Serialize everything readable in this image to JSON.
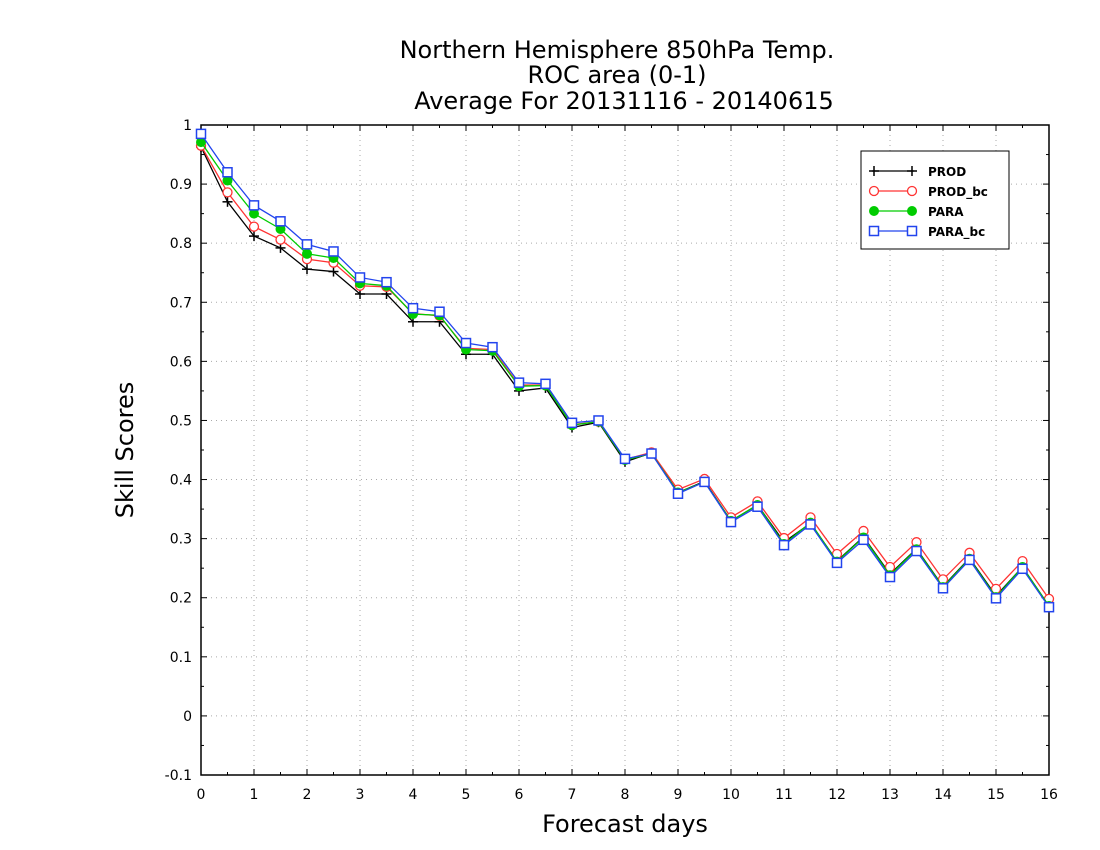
{
  "chart_data": {
    "type": "line",
    "title": [
      "Northern Hemisphere 850hPa Temp.",
      "ROC area (0-1)",
      "Average For 20131116 - 20140615"
    ],
    "xlabel": "Forecast days",
    "ylabel": "Skill Scores",
    "xlim": [
      0,
      16
    ],
    "ylim": [
      -0.1,
      1
    ],
    "x_ticks": [
      "0",
      "1",
      "2",
      "3",
      "4",
      "5",
      "6",
      "7",
      "8",
      "9",
      "10",
      "11",
      "12",
      "13",
      "14",
      "15",
      "16"
    ],
    "y_ticks": [
      "1",
      "0.9",
      "0.8",
      "0.7",
      "0.6",
      "0.5",
      "0.4",
      "0.3",
      "0.2",
      "0.1",
      "0",
      "-0.1"
    ],
    "grid": true,
    "legend_position": "top-right",
    "x": [
      0,
      0.5,
      1,
      1.5,
      2,
      2.5,
      3,
      3.5,
      4,
      4.5,
      5,
      5.5,
      6,
      6.5,
      7,
      7.5,
      8,
      8.5,
      9,
      9.5,
      10,
      10.5,
      11,
      11.5,
      12,
      12.5,
      13,
      13.5,
      14,
      14.5,
      15,
      15.5,
      16
    ],
    "series": [
      {
        "name": "PROD",
        "color": "#000000",
        "marker": "plus",
        "values": [
          0.963,
          0.87,
          0.812,
          0.792,
          0.756,
          0.752,
          0.714,
          0.714,
          0.667,
          0.667,
          0.612,
          0.612,
          0.55,
          0.555,
          0.488,
          0.497,
          0.43,
          0.445,
          0.378,
          0.397,
          0.33,
          0.357,
          0.294,
          0.326,
          0.262,
          0.303,
          0.24,
          0.283,
          0.219,
          0.267,
          0.203,
          0.252,
          0.186
        ]
      },
      {
        "name": "PROD_bc",
        "color": "#ff3333",
        "marker": "circle",
        "values": [
          0.965,
          0.886,
          0.828,
          0.806,
          0.773,
          0.767,
          0.728,
          0.726,
          0.681,
          0.677,
          0.622,
          0.62,
          0.56,
          0.56,
          0.493,
          0.498,
          0.434,
          0.446,
          0.383,
          0.401,
          0.336,
          0.363,
          0.301,
          0.336,
          0.274,
          0.313,
          0.252,
          0.294,
          0.231,
          0.276,
          0.215,
          0.262,
          0.198
        ]
      },
      {
        "name": "PARA",
        "color": "#00cc00",
        "marker": "dot",
        "values": [
          0.971,
          0.906,
          0.85,
          0.824,
          0.782,
          0.775,
          0.732,
          0.728,
          0.68,
          0.678,
          0.62,
          0.618,
          0.558,
          0.559,
          0.492,
          0.498,
          0.433,
          0.444,
          0.378,
          0.396,
          0.33,
          0.357,
          0.291,
          0.327,
          0.261,
          0.302,
          0.238,
          0.282,
          0.218,
          0.266,
          0.201,
          0.252,
          0.186
        ]
      },
      {
        "name": "PARA_bc",
        "color": "#2244ee",
        "marker": "square",
        "values": [
          0.985,
          0.92,
          0.864,
          0.837,
          0.798,
          0.786,
          0.742,
          0.734,
          0.69,
          0.684,
          0.631,
          0.624,
          0.564,
          0.562,
          0.496,
          0.5,
          0.435,
          0.444,
          0.376,
          0.396,
          0.328,
          0.354,
          0.289,
          0.324,
          0.259,
          0.298,
          0.235,
          0.279,
          0.216,
          0.264,
          0.199,
          0.249,
          0.184
        ]
      }
    ]
  }
}
